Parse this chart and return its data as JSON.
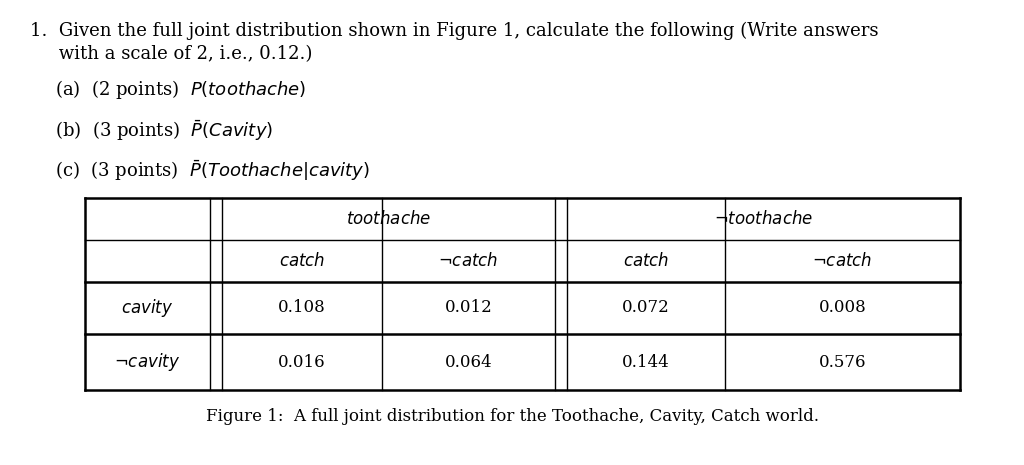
{
  "bg_color": "#ffffff",
  "figsize": [
    10.24,
    4.65
  ],
  "dpi": 100,
  "line1": "1.  Given the full joint distribution shown in Figure 1, calculate the following (Write answers",
  "line2": "     with a scale of 2, i.e., 0.12.)",
  "part_a": "(a)  (2 points)  $P(\\mathit{toothache})$",
  "part_b": "(b)  (3 points)  $\\bar{P}(\\mathit{Cavity})$",
  "part_c": "(c)  (3 points)  $\\bar{P}(\\mathit{Toothache}|\\mathit{cavity})$",
  "figure_caption": "Figure 1:  A full joint distribution for the Toothache, Cavity, Catch world.",
  "table": {
    "values": [
      [
        "0.108",
        "0.012",
        "0.072",
        "0.008"
      ],
      [
        "0.016",
        "0.064",
        "0.144",
        "0.576"
      ]
    ]
  }
}
